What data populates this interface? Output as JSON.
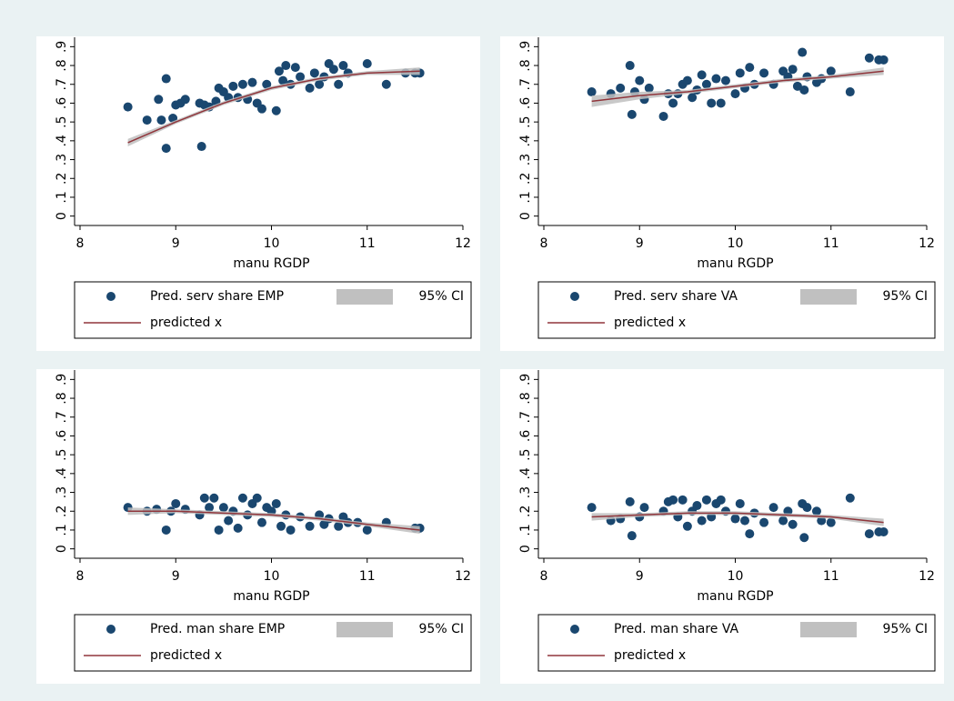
{
  "chart_data": [
    {
      "type": "scatter",
      "x_label": "manu RGDP",
      "xlim": [
        8,
        12
      ],
      "xticks": [
        8,
        9,
        10,
        11,
        12
      ],
      "ylim": [
        -0.05,
        0.95
      ],
      "yticks": [
        0,
        {
          "value": 0.1,
          "label": ".1"
        },
        {
          "value": 0.2,
          "label": ".2"
        },
        {
          "value": 0.3,
          "label": ".3"
        },
        {
          "value": 0.4,
          "label": ".4"
        },
        {
          "value": 0.5,
          "label": ".5"
        },
        {
          "value": 0.6,
          "label": ".6"
        },
        {
          "value": 0.7,
          "label": ".7"
        },
        {
          "value": 0.8,
          "label": ".8"
        },
        {
          "value": 0.9,
          "label": ".9"
        }
      ],
      "series": [
        {
          "name": "Pred. serv share EMP",
          "mark": "scatter",
          "color": "#1a476f",
          "x": [
            8.5,
            8.7,
            8.82,
            8.85,
            8.9,
            8.9,
            8.97,
            9.0,
            9.05,
            9.1,
            9.27,
            9.25,
            9.3,
            9.35,
            9.42,
            9.45,
            9.5,
            9.55,
            9.6,
            9.65,
            9.7,
            9.75,
            9.8,
            9.85,
            9.9,
            9.95,
            10.05,
            10.08,
            10.12,
            10.15,
            10.2,
            10.25,
            10.3,
            10.4,
            10.45,
            10.5,
            10.55,
            10.6,
            10.65,
            10.7,
            10.75,
            10.8,
            11.0,
            11.2,
            11.4,
            11.5,
            11.55
          ],
          "values": [
            0.58,
            0.51,
            0.62,
            0.51,
            0.73,
            0.36,
            0.52,
            0.59,
            0.6,
            0.62,
            0.37,
            0.6,
            0.59,
            0.58,
            0.61,
            0.68,
            0.66,
            0.63,
            0.69,
            0.63,
            0.7,
            0.62,
            0.71,
            0.6,
            0.57,
            0.7,
            0.56,
            0.77,
            0.72,
            0.8,
            0.7,
            0.79,
            0.74,
            0.68,
            0.76,
            0.7,
            0.74,
            0.81,
            0.78,
            0.7,
            0.8,
            0.76,
            0.81,
            0.7,
            0.76,
            0.76,
            0.76
          ]
        },
        {
          "name": "95% CI",
          "mark": "band",
          "color": "#c0c0c0",
          "x": [
            8.5,
            9,
            9.5,
            10,
            10.5,
            11,
            11.55
          ],
          "lower": [
            0.37,
            0.49,
            0.59,
            0.67,
            0.72,
            0.75,
            0.75
          ],
          "upper": [
            0.41,
            0.51,
            0.61,
            0.69,
            0.74,
            0.77,
            0.79
          ]
        },
        {
          "name": "predicted x",
          "mark": "line",
          "color": "#90353b",
          "x": [
            8.5,
            9,
            9.5,
            10,
            10.5,
            11,
            11.55
          ],
          "values": [
            0.39,
            0.5,
            0.6,
            0.68,
            0.73,
            0.76,
            0.77
          ]
        }
      ]
    },
    {
      "type": "scatter",
      "x_label": "manu RGDP",
      "xlim": [
        8,
        12
      ],
      "xticks": [
        8,
        9,
        10,
        11,
        12
      ],
      "ylim": [
        -0.05,
        0.95
      ],
      "yticks": [
        0,
        {
          "value": 0.1,
          "label": ".1"
        },
        {
          "value": 0.2,
          "label": ".2"
        },
        {
          "value": 0.3,
          "label": ".3"
        },
        {
          "value": 0.4,
          "label": ".4"
        },
        {
          "value": 0.5,
          "label": ".5"
        },
        {
          "value": 0.6,
          "label": ".6"
        },
        {
          "value": 0.7,
          "label": ".7"
        },
        {
          "value": 0.8,
          "label": ".8"
        },
        {
          "value": 0.9,
          "label": ".9"
        }
      ],
      "series": [
        {
          "name": "Pred. serv  share VA",
          "mark": "scatter",
          "color": "#1a476f",
          "x": [
            8.5,
            8.7,
            8.8,
            8.9,
            8.92,
            8.95,
            9.0,
            9.05,
            9.1,
            9.25,
            9.3,
            9.35,
            9.4,
            9.45,
            9.5,
            9.55,
            9.6,
            9.65,
            9.7,
            9.75,
            9.8,
            9.85,
            9.9,
            10.0,
            10.05,
            10.1,
            10.15,
            10.2,
            10.3,
            10.4,
            10.5,
            10.55,
            10.6,
            10.65,
            10.7,
            10.72,
            10.75,
            10.85,
            10.9,
            11.0,
            11.2,
            11.4,
            11.5,
            11.55
          ],
          "values": [
            0.66,
            0.65,
            0.68,
            0.8,
            0.54,
            0.66,
            0.72,
            0.62,
            0.68,
            0.53,
            0.65,
            0.6,
            0.65,
            0.7,
            0.72,
            0.63,
            0.67,
            0.75,
            0.7,
            0.6,
            0.73,
            0.6,
            0.72,
            0.65,
            0.76,
            0.68,
            0.79,
            0.7,
            0.76,
            0.7,
            0.77,
            0.74,
            0.78,
            0.69,
            0.87,
            0.67,
            0.74,
            0.71,
            0.73,
            0.77,
            0.66,
            0.84,
            0.83,
            0.83
          ]
        },
        {
          "name": "95% CI",
          "mark": "band",
          "color": "#c0c0c0",
          "x": [
            8.5,
            9,
            9.5,
            10,
            10.5,
            11,
            11.55
          ],
          "lower": [
            0.58,
            0.62,
            0.65,
            0.68,
            0.71,
            0.73,
            0.75
          ],
          "upper": [
            0.64,
            0.66,
            0.67,
            0.7,
            0.73,
            0.75,
            0.79
          ]
        },
        {
          "name": "predicted x",
          "mark": "line",
          "color": "#90353b",
          "x": [
            8.5,
            9,
            9.5,
            10,
            10.5,
            11,
            11.55
          ],
          "values": [
            0.61,
            0.64,
            0.66,
            0.69,
            0.72,
            0.74,
            0.77
          ]
        }
      ]
    },
    {
      "type": "scatter",
      "x_label": "manu RGDP",
      "xlim": [
        8,
        12
      ],
      "xticks": [
        8,
        9,
        10,
        11,
        12
      ],
      "ylim": [
        -0.05,
        0.95
      ],
      "yticks": [
        0,
        {
          "value": 0.1,
          "label": ".1"
        },
        {
          "value": 0.2,
          "label": ".2"
        },
        {
          "value": 0.3,
          "label": ".3"
        },
        {
          "value": 0.4,
          "label": ".4"
        },
        {
          "value": 0.5,
          "label": ".5"
        },
        {
          "value": 0.6,
          "label": ".6"
        },
        {
          "value": 0.7,
          "label": ".7"
        },
        {
          "value": 0.8,
          "label": ".8"
        },
        {
          "value": 0.9,
          "label": ".9"
        }
      ],
      "series": [
        {
          "name": "Pred. man share EMP",
          "mark": "scatter",
          "color": "#1a476f",
          "x": [
            8.5,
            8.7,
            8.8,
            8.9,
            8.95,
            9.0,
            9.1,
            9.25,
            9.3,
            9.35,
            9.4,
            9.45,
            9.5,
            9.55,
            9.6,
            9.65,
            9.7,
            9.75,
            9.8,
            9.85,
            9.9,
            9.95,
            10.0,
            10.05,
            10.1,
            10.15,
            10.2,
            10.3,
            10.4,
            10.5,
            10.55,
            10.6,
            10.7,
            10.75,
            10.8,
            10.9,
            11.0,
            11.2,
            11.5,
            11.55
          ],
          "values": [
            0.22,
            0.2,
            0.21,
            0.1,
            0.2,
            0.24,
            0.21,
            0.18,
            0.27,
            0.22,
            0.27,
            0.1,
            0.22,
            0.15,
            0.2,
            0.11,
            0.27,
            0.18,
            0.24,
            0.27,
            0.14,
            0.22,
            0.2,
            0.24,
            0.12,
            0.18,
            0.1,
            0.17,
            0.12,
            0.18,
            0.13,
            0.16,
            0.12,
            0.17,
            0.14,
            0.14,
            0.1,
            0.14,
            0.11,
            0.11
          ]
        },
        {
          "name": "95% CI",
          "mark": "band",
          "color": "#c0c0c0",
          "x": [
            8.5,
            9,
            9.5,
            10,
            10.5,
            11,
            11.55
          ],
          "lower": [
            0.18,
            0.19,
            0.18,
            0.17,
            0.15,
            0.12,
            0.08
          ],
          "upper": [
            0.22,
            0.21,
            0.2,
            0.19,
            0.17,
            0.14,
            0.12
          ]
        },
        {
          "name": "predicted x",
          "mark": "line",
          "color": "#90353b",
          "x": [
            8.5,
            9,
            9.5,
            10,
            10.5,
            11,
            11.55
          ],
          "values": [
            0.2,
            0.2,
            0.19,
            0.18,
            0.16,
            0.13,
            0.1
          ]
        }
      ]
    },
    {
      "type": "scatter",
      "x_label": "manu RGDP",
      "xlim": [
        8,
        12
      ],
      "xticks": [
        8,
        9,
        10,
        11,
        12
      ],
      "ylim": [
        -0.05,
        0.95
      ],
      "yticks": [
        0,
        {
          "value": 0.1,
          "label": ".1"
        },
        {
          "value": 0.2,
          "label": ".2"
        },
        {
          "value": 0.3,
          "label": ".3"
        },
        {
          "value": 0.4,
          "label": ".4"
        },
        {
          "value": 0.5,
          "label": ".5"
        },
        {
          "value": 0.6,
          "label": ".6"
        },
        {
          "value": 0.7,
          "label": ".7"
        },
        {
          "value": 0.8,
          "label": ".8"
        },
        {
          "value": 0.9,
          "label": ".9"
        }
      ],
      "series": [
        {
          "name": "Pred. man share VA",
          "mark": "scatter",
          "color": "#1a476f",
          "x": [
            8.5,
            8.7,
            8.8,
            8.9,
            8.92,
            9.0,
            9.05,
            9.25,
            9.3,
            9.35,
            9.4,
            9.45,
            9.5,
            9.55,
            9.6,
            9.65,
            9.7,
            9.75,
            9.8,
            9.85,
            9.9,
            10.0,
            10.05,
            10.1,
            10.15,
            10.2,
            10.3,
            10.4,
            10.5,
            10.55,
            10.6,
            10.7,
            10.72,
            10.75,
            10.85,
            10.9,
            11.0,
            11.2,
            11.4,
            11.5,
            11.55
          ],
          "values": [
            0.22,
            0.15,
            0.16,
            0.25,
            0.07,
            0.17,
            0.22,
            0.2,
            0.25,
            0.26,
            0.17,
            0.26,
            0.12,
            0.2,
            0.23,
            0.15,
            0.26,
            0.17,
            0.24,
            0.26,
            0.2,
            0.16,
            0.24,
            0.15,
            0.08,
            0.19,
            0.14,
            0.22,
            0.15,
            0.2,
            0.13,
            0.24,
            0.06,
            0.22,
            0.2,
            0.15,
            0.14,
            0.27,
            0.08,
            0.09,
            0.09
          ]
        },
        {
          "name": "95% CI",
          "mark": "band",
          "color": "#c0c0c0",
          "x": [
            8.5,
            9,
            9.5,
            10,
            10.5,
            11,
            11.55
          ],
          "lower": [
            0.15,
            0.17,
            0.18,
            0.18,
            0.17,
            0.16,
            0.12
          ],
          "upper": [
            0.19,
            0.19,
            0.2,
            0.2,
            0.19,
            0.18,
            0.16
          ]
        },
        {
          "name": "predicted x",
          "mark": "line",
          "color": "#90353b",
          "x": [
            8.5,
            9,
            9.5,
            10,
            10.5,
            11,
            11.55
          ],
          "values": [
            0.17,
            0.18,
            0.19,
            0.19,
            0.18,
            0.17,
            0.14
          ]
        }
      ]
    }
  ]
}
